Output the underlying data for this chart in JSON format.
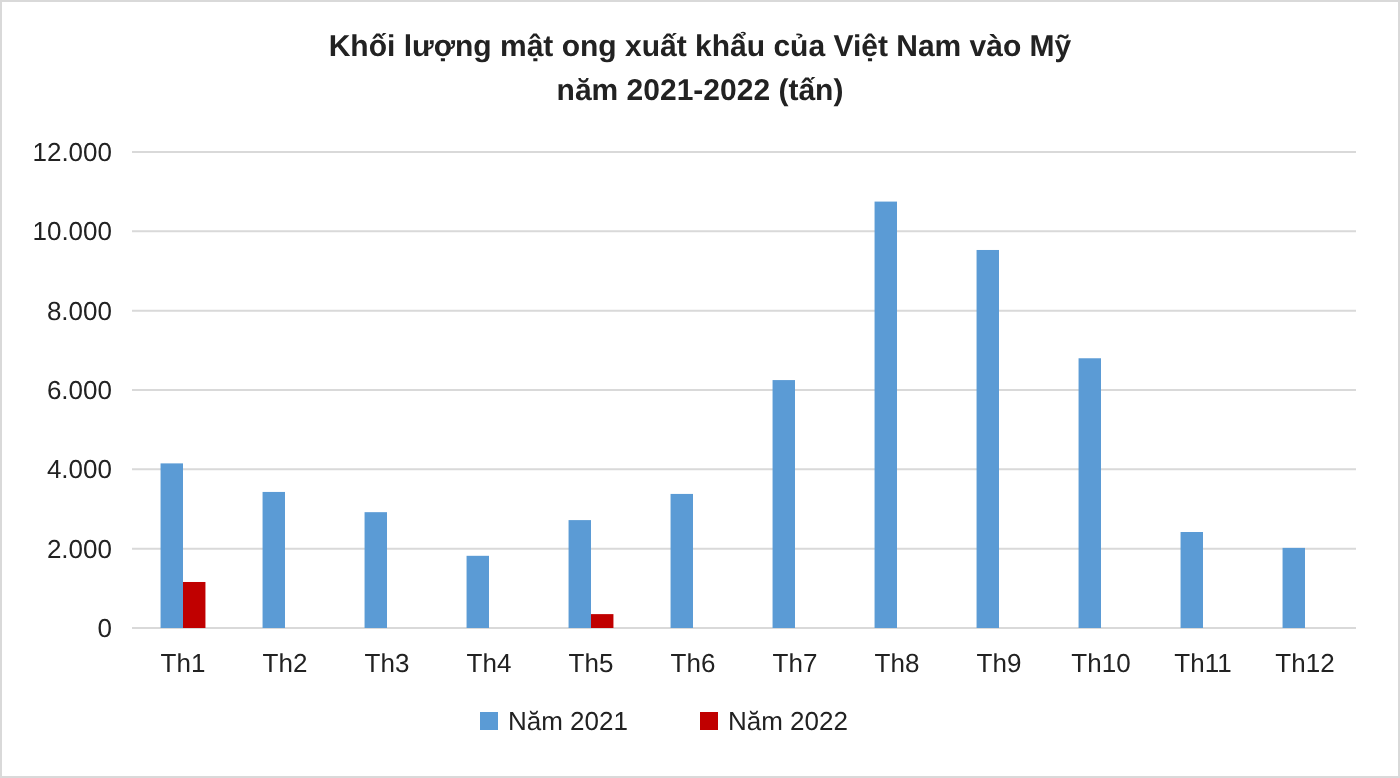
{
  "chart_data": {
    "type": "bar",
    "title": "Khối lượng mật ong xuất khẩu của Việt Nam vào Mỹ\nnăm 2021-2022 (tấn)",
    "categories": [
      "Th1",
      "Th2",
      "Th3",
      "Th4",
      "Th5",
      "Th6",
      "Th7",
      "Th8",
      "Th9",
      "Th10",
      "Th11",
      "Th12"
    ],
    "series": [
      {
        "name": "Năm 2021",
        "color": "#5b9bd5",
        "values": [
          4150,
          3430,
          2920,
          1820,
          2720,
          3380,
          6250,
          10750,
          9530,
          6800,
          2420,
          2020
        ]
      },
      {
        "name": "Năm 2022",
        "color": "#c00000",
        "values": [
          1160,
          null,
          null,
          null,
          350,
          null,
          null,
          null,
          null,
          null,
          null,
          null
        ]
      }
    ],
    "ylim": [
      0,
      12000
    ],
    "yticks": [
      {
        "value": 0,
        "label": "0"
      },
      {
        "value": 2000,
        "label": "2.000"
      },
      {
        "value": 4000,
        "label": "4.000"
      },
      {
        "value": 6000,
        "label": "6.000"
      },
      {
        "value": 8000,
        "label": "8.000"
      },
      {
        "value": 10000,
        "label": "10.000"
      },
      {
        "value": 12000,
        "label": "12.000"
      }
    ],
    "grid": "y",
    "legend": "bottom"
  }
}
